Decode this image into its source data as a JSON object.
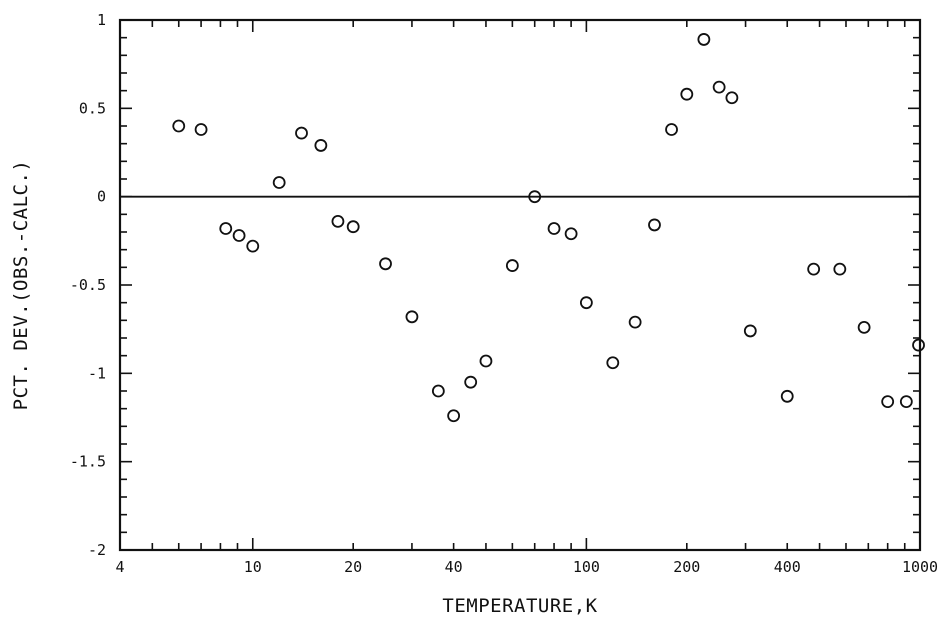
{
  "chart_data": {
    "type": "scatter",
    "title": "",
    "xlabel": "TEMPERATURE,K",
    "ylabel": "PCT. DEV.(OBS.-CALC.)",
    "x_scale": "log",
    "xlim": [
      4,
      1000
    ],
    "ylim": [
      -2,
      1
    ],
    "x_tick_labels": [
      "4",
      "10",
      "20",
      "40",
      "100",
      "200",
      "400",
      "1000"
    ],
    "y_tick_labels": [
      "1",
      "0.5",
      "0",
      "-0.5",
      "-1",
      "-1.5",
      "-2"
    ],
    "zero_line": true,
    "grid": false,
    "marker": "open-circle",
    "series": [
      {
        "points": [
          {
            "x": 6,
            "y": 0.4
          },
          {
            "x": 7,
            "y": 0.38
          },
          {
            "x": 8.3,
            "y": -0.18
          },
          {
            "x": 9.1,
            "y": -0.22
          },
          {
            "x": 10,
            "y": -0.28
          },
          {
            "x": 12,
            "y": 0.08
          },
          {
            "x": 14,
            "y": 0.36
          },
          {
            "x": 16,
            "y": 0.29
          },
          {
            "x": 18,
            "y": -0.14
          },
          {
            "x": 20,
            "y": -0.17
          },
          {
            "x": 25,
            "y": -0.38
          },
          {
            "x": 30,
            "y": -0.68
          },
          {
            "x": 36,
            "y": -1.1
          },
          {
            "x": 40,
            "y": -1.24
          },
          {
            "x": 45,
            "y": -1.05
          },
          {
            "x": 50,
            "y": -0.93
          },
          {
            "x": 60,
            "y": -0.39
          },
          {
            "x": 70,
            "y": 0.0
          },
          {
            "x": 80,
            "y": -0.18
          },
          {
            "x": 90,
            "y": -0.21
          },
          {
            "x": 100,
            "y": -0.6
          },
          {
            "x": 120,
            "y": -0.94
          },
          {
            "x": 140,
            "y": -0.71
          },
          {
            "x": 160,
            "y": -0.16
          },
          {
            "x": 180,
            "y": 0.38
          },
          {
            "x": 200,
            "y": 0.58
          },
          {
            "x": 225,
            "y": 0.89
          },
          {
            "x": 250,
            "y": 0.62
          },
          {
            "x": 273,
            "y": 0.56
          },
          {
            "x": 310,
            "y": -0.76
          },
          {
            "x": 400,
            "y": -1.13
          },
          {
            "x": 480,
            "y": -0.41
          },
          {
            "x": 575,
            "y": -0.41
          },
          {
            "x": 680,
            "y": -0.74
          },
          {
            "x": 800,
            "y": -1.16
          },
          {
            "x": 910,
            "y": -1.16
          },
          {
            "x": 990,
            "y": -0.84
          }
        ]
      }
    ]
  }
}
